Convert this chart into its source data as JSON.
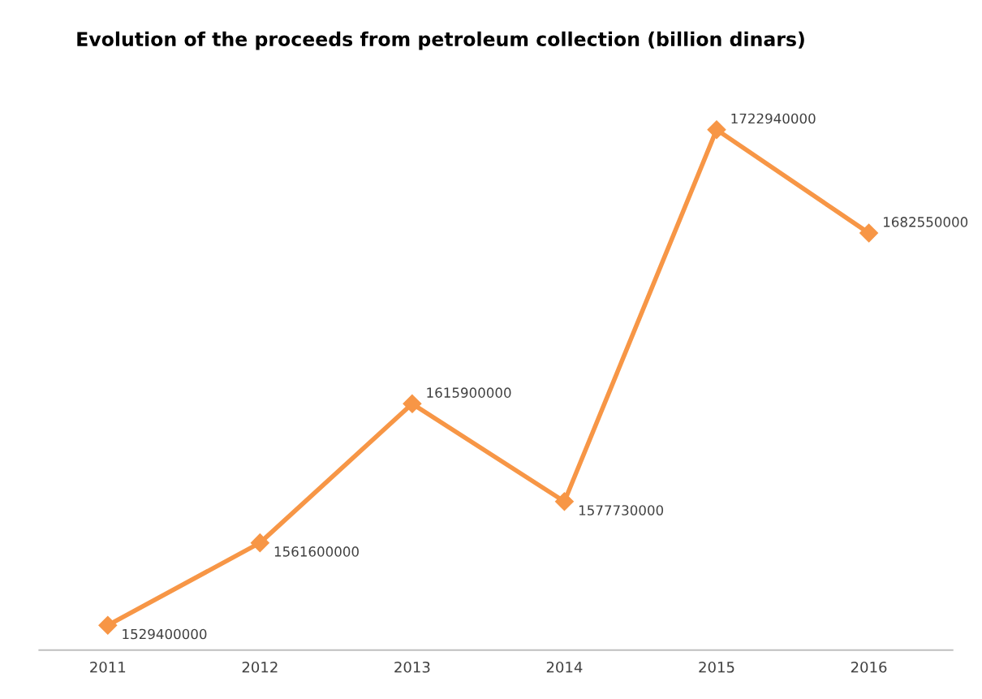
{
  "chart_data": {
    "type": "line",
    "title": "Evolution of the proceeds from petroleum collection (billion dinars)",
    "categories": [
      "2011",
      "2012",
      "2013",
      "2014",
      "2015",
      "2016"
    ],
    "series": [
      {
        "color": "#f79646",
        "values": [
          1529400000,
          1561600000,
          1615900000,
          1577730000,
          1722940000,
          1682550000
        ]
      }
    ],
    "tick_labels": "x",
    "data_labels": true,
    "marker": "diamond",
    "line_style": "solid",
    "grid": false,
    "legend": false
  }
}
